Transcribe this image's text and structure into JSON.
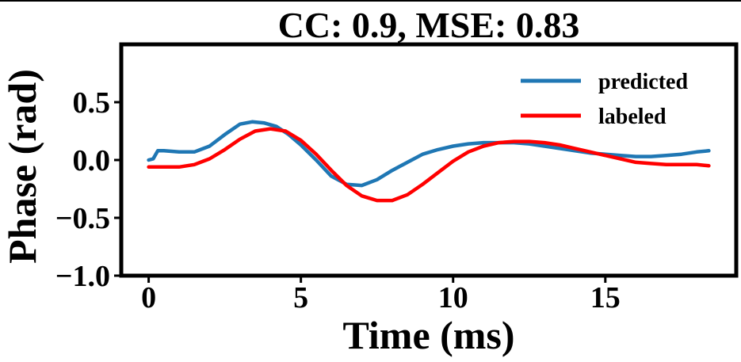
{
  "chart_data": {
    "type": "line",
    "title": "CC: 0.9, MSE: 0.83",
    "xlabel": "Time (ms)",
    "ylabel": "Phase (rad)",
    "xlim": [
      -0.9,
      19.3
    ],
    "ylim": [
      -1.0,
      1.0
    ],
    "xticks": [
      0,
      5,
      10,
      15
    ],
    "xtick_labels": [
      "0",
      "5",
      "10",
      "15"
    ],
    "yticks": [
      -1.0,
      -0.5,
      0.0,
      0.5
    ],
    "ytick_labels": [
      "−1.0",
      "−0.5",
      "0.0",
      "0.5"
    ],
    "grid": false,
    "legend_position": "top-right",
    "series": [
      {
        "name": "predicted",
        "color": "#1f77b4",
        "x": [
          0,
          0.15,
          0.3,
          0.5,
          1.0,
          1.5,
          2.0,
          2.5,
          3.0,
          3.4,
          3.8,
          4.2,
          4.6,
          5.0,
          5.5,
          6.0,
          6.5,
          7.0,
          7.5,
          8.0,
          8.5,
          9.0,
          9.5,
          10.0,
          10.5,
          11.0,
          11.5,
          12.0,
          12.5,
          13.0,
          13.5,
          14.0,
          14.5,
          15.0,
          15.5,
          16.0,
          16.5,
          17.0,
          17.5,
          18.0,
          18.4
        ],
        "y": [
          0.0,
          0.01,
          0.08,
          0.08,
          0.07,
          0.07,
          0.12,
          0.22,
          0.31,
          0.33,
          0.32,
          0.29,
          0.22,
          0.13,
          0.0,
          -0.14,
          -0.21,
          -0.22,
          -0.17,
          -0.09,
          -0.02,
          0.05,
          0.09,
          0.12,
          0.14,
          0.15,
          0.15,
          0.15,
          0.14,
          0.12,
          0.1,
          0.08,
          0.06,
          0.05,
          0.04,
          0.03,
          0.03,
          0.04,
          0.05,
          0.07,
          0.08
        ]
      },
      {
        "name": "labeled",
        "color": "#ff0000",
        "x": [
          0,
          0.5,
          1.0,
          1.5,
          2.0,
          2.5,
          3.0,
          3.5,
          4.0,
          4.5,
          5.0,
          5.5,
          6.0,
          6.5,
          7.0,
          7.5,
          8.0,
          8.5,
          9.0,
          9.5,
          10.0,
          10.5,
          11.0,
          11.5,
          12.0,
          12.5,
          13.0,
          13.5,
          14.0,
          14.5,
          15.0,
          15.5,
          16.0,
          16.5,
          17.0,
          17.5,
          18.0,
          18.4
        ],
        "y": [
          -0.06,
          -0.06,
          -0.06,
          -0.04,
          0.01,
          0.09,
          0.18,
          0.25,
          0.27,
          0.25,
          0.17,
          0.05,
          -0.09,
          -0.22,
          -0.31,
          -0.35,
          -0.35,
          -0.3,
          -0.21,
          -0.11,
          -0.01,
          0.07,
          0.12,
          0.15,
          0.16,
          0.16,
          0.15,
          0.13,
          0.1,
          0.07,
          0.04,
          0.01,
          -0.02,
          -0.03,
          -0.04,
          -0.04,
          -0.04,
          -0.05
        ]
      }
    ]
  }
}
